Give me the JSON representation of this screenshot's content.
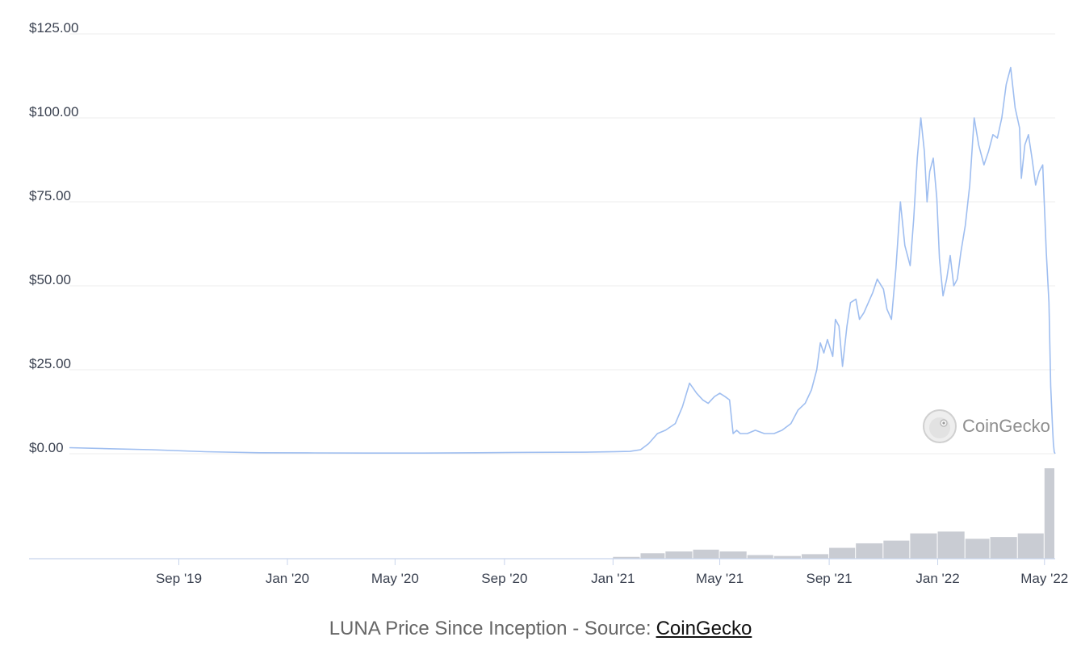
{
  "chart_data": {
    "type": "line",
    "title": "",
    "xlabel": "",
    "ylabel": "",
    "ylim": [
      0,
      125
    ],
    "y_ticks": [
      "$0.00",
      "$25.00",
      "$50.00",
      "$75.00",
      "$100.00",
      "$125.00"
    ],
    "y_tick_values": [
      0,
      25,
      50,
      75,
      100,
      125
    ],
    "x_ticks": [
      "Sep '19",
      "Jan '20",
      "May '20",
      "Sep '20",
      "Jan '21",
      "May '21",
      "Sep '21",
      "Jan '22",
      "May '22"
    ],
    "x_tick_dates": [
      "2019-09-01",
      "2020-01-01",
      "2020-05-01",
      "2020-09-01",
      "2021-01-01",
      "2021-05-01",
      "2021-09-01",
      "2022-01-01",
      "2022-05-01"
    ],
    "x_range": [
      "2019-05-01",
      "2022-05-13"
    ],
    "grid": true,
    "colors": {
      "price": "#9fbef0",
      "volume": "#c9ccd3",
      "axis": "#c8d4ec"
    },
    "series": [
      {
        "x": [
          "2019-05-01",
          "2019-06-15",
          "2019-08-01",
          "2019-10-01",
          "2019-12-01",
          "2020-02-01",
          "2020-04-01",
          "2020-06-01",
          "2020-08-01",
          "2020-10-01",
          "2020-12-01",
          "2021-01-20",
          "2021-02-01",
          "2021-02-10",
          "2021-02-20",
          "2021-03-01",
          "2021-03-12",
          "2021-03-20",
          "2021-03-28",
          "2021-04-05",
          "2021-04-12",
          "2021-04-18",
          "2021-04-25",
          "2021-05-01",
          "2021-05-07",
          "2021-05-12",
          "2021-05-16",
          "2021-05-20",
          "2021-05-24",
          "2021-06-01",
          "2021-06-10",
          "2021-06-20",
          "2021-07-01",
          "2021-07-10",
          "2021-07-20",
          "2021-07-28",
          "2021-08-05",
          "2021-08-12",
          "2021-08-18",
          "2021-08-22",
          "2021-08-26",
          "2021-08-30",
          "2021-09-05",
          "2021-09-08",
          "2021-09-12",
          "2021-09-16",
          "2021-09-21",
          "2021-09-25",
          "2021-10-01",
          "2021-10-05",
          "2021-10-10",
          "2021-10-15",
          "2021-10-20",
          "2021-10-25",
          "2021-11-01",
          "2021-11-05",
          "2021-11-10",
          "2021-11-15",
          "2021-11-20",
          "2021-11-25",
          "2021-12-01",
          "2021-12-05",
          "2021-12-09",
          "2021-12-13",
          "2021-12-17",
          "2021-12-20",
          "2021-12-23",
          "2021-12-27",
          "2021-12-31",
          "2022-01-03",
          "2022-01-07",
          "2022-01-11",
          "2022-01-15",
          "2022-01-19",
          "2022-01-23",
          "2022-01-27",
          "2022-02-01",
          "2022-02-06",
          "2022-02-11",
          "2022-02-16",
          "2022-02-22",
          "2022-02-27",
          "2022-03-04",
          "2022-03-09",
          "2022-03-14",
          "2022-03-19",
          "2022-03-24",
          "2022-03-29",
          "2022-04-03",
          "2022-04-05",
          "2022-04-09",
          "2022-04-13",
          "2022-04-17",
          "2022-04-21",
          "2022-04-25",
          "2022-04-29",
          "2022-05-03",
          "2022-05-06",
          "2022-05-08",
          "2022-05-10",
          "2022-05-11",
          "2022-05-12",
          "2022-05-13"
        ],
        "values": [
          1.8,
          1.5,
          1.2,
          0.6,
          0.3,
          0.25,
          0.2,
          0.2,
          0.3,
          0.4,
          0.45,
          0.7,
          1.2,
          3,
          6,
          7,
          9,
          14,
          21,
          18,
          16,
          15,
          17,
          18,
          17,
          16,
          6,
          7,
          6,
          6,
          7,
          6,
          6,
          7,
          9,
          13,
          15,
          19,
          25,
          33,
          30,
          34,
          29,
          40,
          38,
          26,
          38,
          45,
          46,
          40,
          42,
          45,
          48,
          52,
          49,
          43,
          40,
          55,
          75,
          62,
          56,
          70,
          88,
          100,
          90,
          75,
          84,
          88,
          76,
          58,
          47,
          52,
          59,
          50,
          52,
          60,
          68,
          80,
          100,
          92,
          86,
          90,
          95,
          94,
          100,
          110,
          115,
          103,
          97,
          82,
          92,
          95,
          88,
          80,
          84,
          86,
          60,
          45,
          20,
          8,
          3,
          0.5,
          0.02
        ]
      }
    ],
    "volume": {
      "x": [
        "2021-01",
        "2021-02",
        "2021-03",
        "2021-04",
        "2021-05",
        "2021-06",
        "2021-07",
        "2021-08",
        "2021-09",
        "2021-10",
        "2021-11",
        "2021-12",
        "2022-01",
        "2022-02",
        "2022-03",
        "2022-04",
        "2022-05"
      ],
      "values": [
        0.02,
        0.06,
        0.08,
        0.1,
        0.08,
        0.04,
        0.03,
        0.05,
        0.12,
        0.17,
        0.2,
        0.28,
        0.3,
        0.22,
        0.24,
        0.28,
        1.0
      ]
    }
  },
  "watermark": {
    "text": "CoinGecko",
    "icon": "gecko-logo-icon"
  },
  "caption": {
    "text": "LUNA Price Since Inception - Source:",
    "link": "CoinGecko"
  }
}
